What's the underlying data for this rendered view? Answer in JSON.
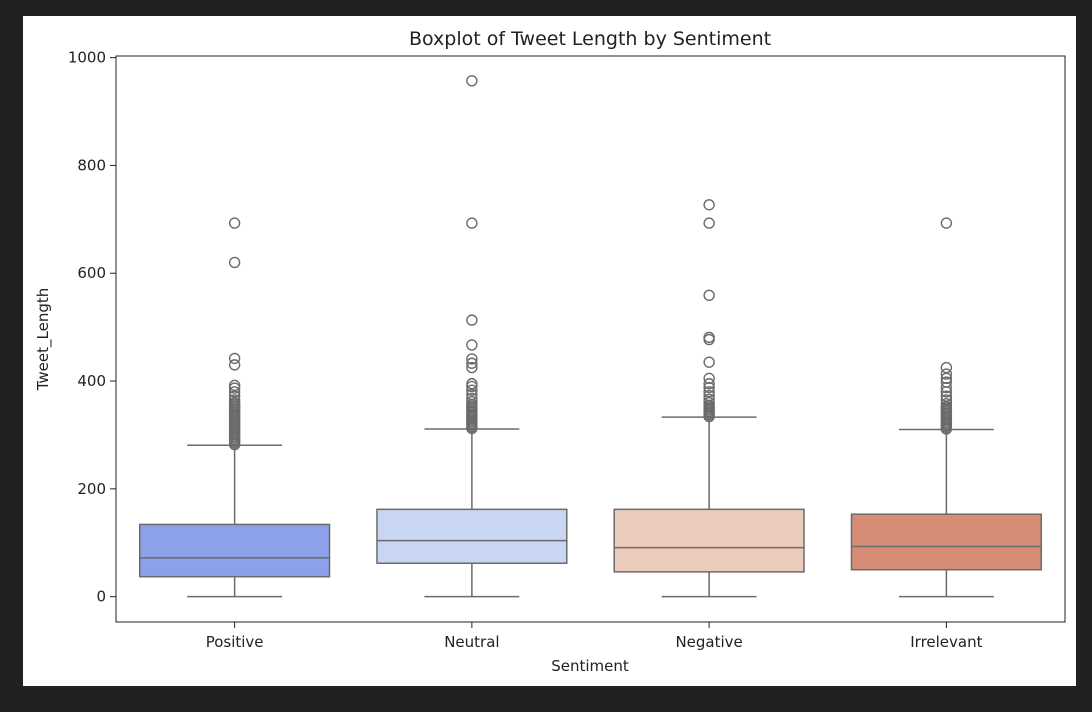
{
  "chart_data": {
    "type": "boxplot",
    "title": "Boxplot of Tweet Length by Sentiment",
    "xlabel": "Sentiment",
    "ylabel": "Tweet_Length",
    "ylim": [
      -47,
      1003
    ],
    "yticks": [
      0,
      200,
      400,
      600,
      800,
      1000
    ],
    "grid": false,
    "legend": "none",
    "categories": [
      "Positive",
      "Neutral",
      "Negative",
      "Irrelevant"
    ],
    "colors": [
      "#8da0ea",
      "#c9d6f1",
      "#ebcbbb",
      "#d68c75"
    ],
    "boxes": [
      {
        "category": "Positive",
        "whisker_low": 0,
        "q1": 37,
        "median": 72,
        "q3": 134,
        "whisker_high": 281,
        "outliers": [
          282,
          285,
          288,
          291,
          294,
          297,
          300,
          303,
          306,
          309,
          312,
          315,
          318,
          321,
          324,
          327,
          330,
          333,
          336,
          339,
          342,
          345,
          348,
          351,
          354,
          357,
          360,
          365,
          372,
          380,
          387,
          392,
          430,
          442,
          620,
          693
        ]
      },
      {
        "category": "Neutral",
        "whisker_low": 0,
        "q1": 62,
        "median": 104,
        "q3": 162,
        "whisker_high": 311,
        "outliers": [
          312,
          315,
          318,
          321,
          324,
          327,
          330,
          333,
          336,
          339,
          342,
          345,
          348,
          351,
          354,
          357,
          362,
          368,
          375,
          383,
          390,
          395,
          425,
          433,
          441,
          467,
          513,
          693,
          957
        ]
      },
      {
        "category": "Negative",
        "whisker_low": 0,
        "q1": 46,
        "median": 91,
        "q3": 162,
        "whisker_high": 333,
        "outliers": [
          334,
          337,
          340,
          343,
          346,
          349,
          352,
          355,
          360,
          366,
          373,
          380,
          388,
          395,
          405,
          435,
          477,
          481,
          559,
          693,
          727
        ]
      },
      {
        "category": "Irrelevant",
        "whisker_low": 0,
        "q1": 50,
        "median": 93,
        "q3": 153,
        "whisker_high": 310,
        "outliers": [
          311,
          314,
          317,
          320,
          323,
          326,
          329,
          332,
          335,
          338,
          341,
          344,
          347,
          350,
          353,
          358,
          365,
          372,
          380,
          388,
          398,
          405,
          413,
          425,
          693
        ]
      }
    ]
  }
}
